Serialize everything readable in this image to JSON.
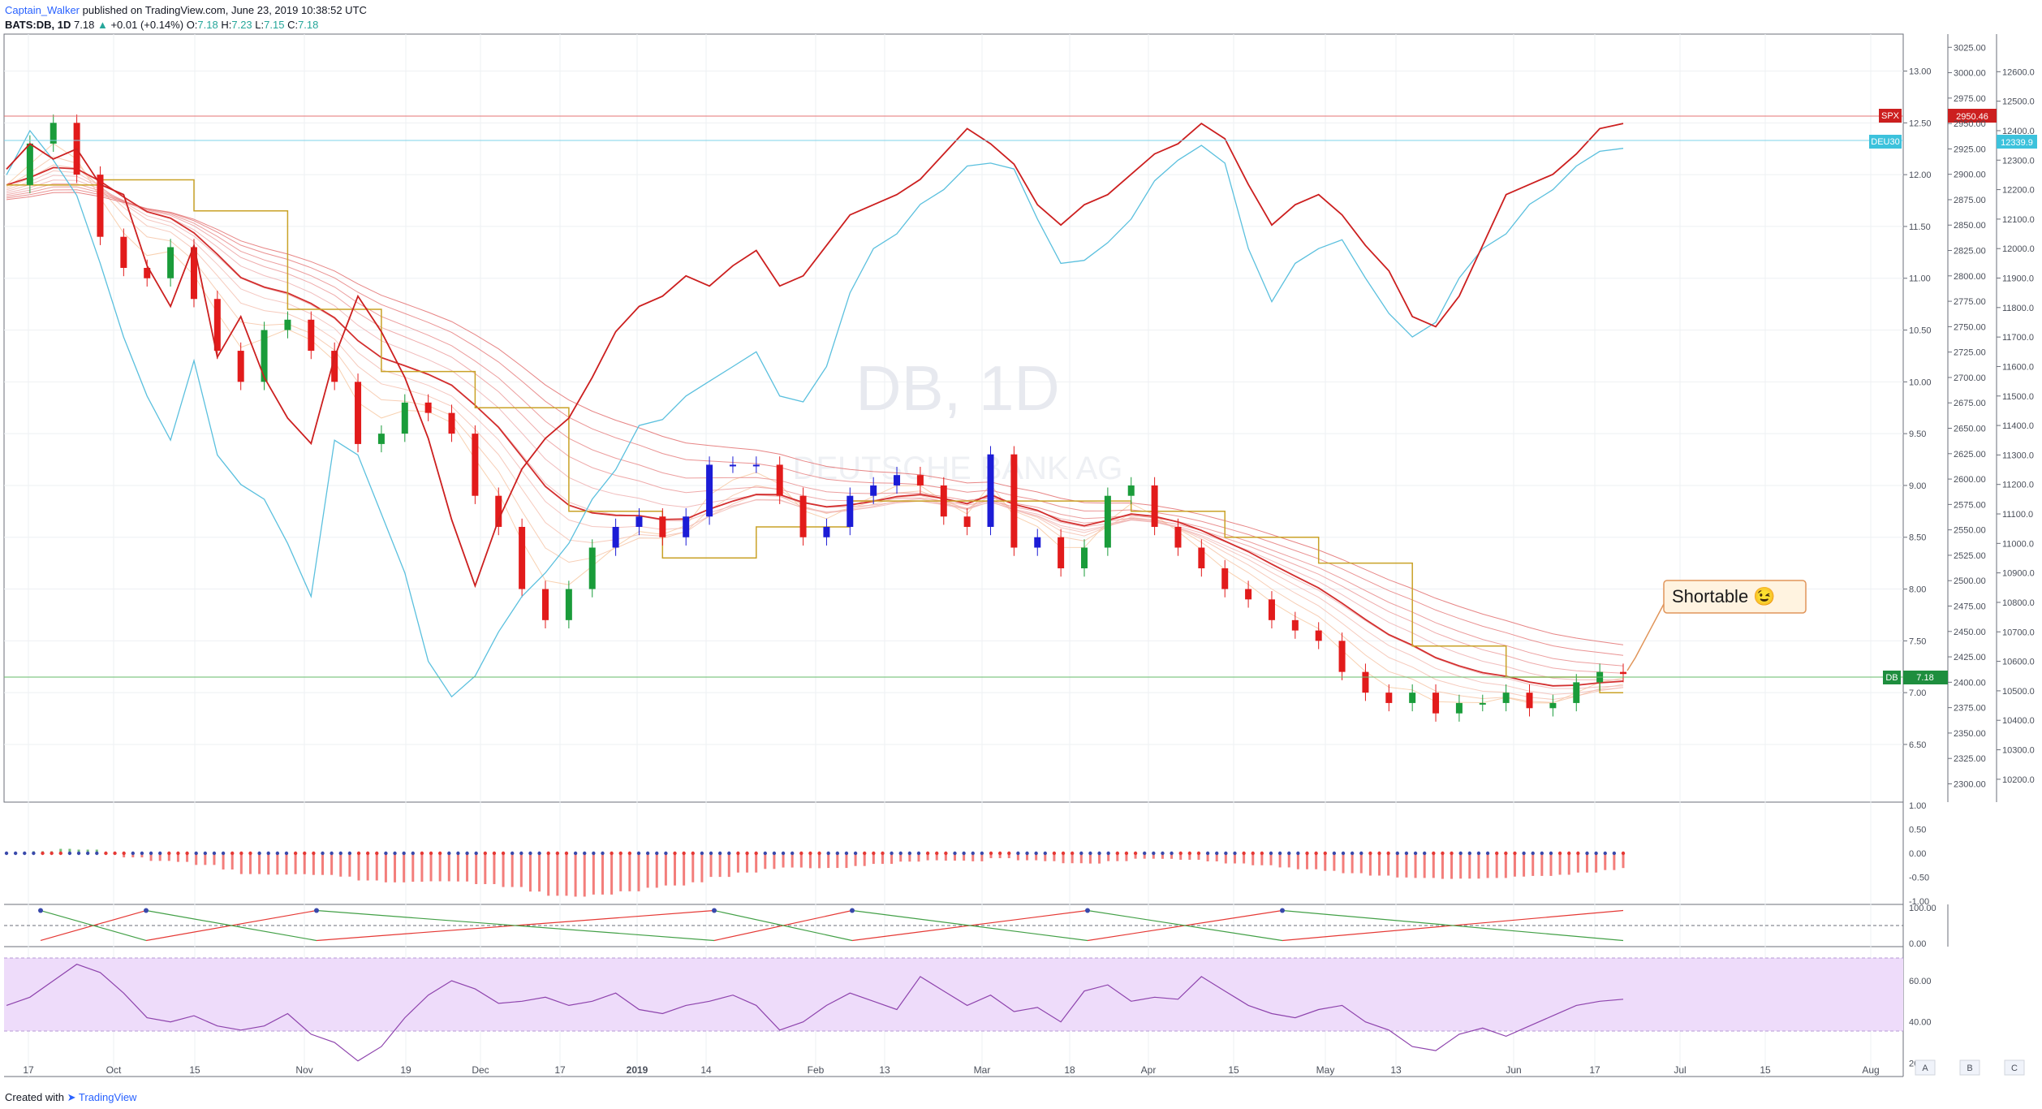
{
  "header": {
    "publisher": "Captain_Walker",
    "published_text": " published on TradingView.com, June 23, 2019 10:38:52 UTC",
    "symbol": "BATS:DB, 1D",
    "last": "7.18",
    "change": "+0.01 (+0.14%)",
    "o_label": "O:",
    "o": "7.18",
    "h_label": "H:",
    "h": "7.23",
    "l_label": "L:",
    "l": "7.15",
    "c_label": "C:",
    "c": "7.18"
  },
  "footer": {
    "created": "Created with",
    "brand": "TradingView"
  },
  "watermark": {
    "line1": "DB, 1D",
    "line2": "DEUTSCHE BANK AG"
  },
  "colors": {
    "spx": "#cc1f1f",
    "deu30": "#5bc0de",
    "db": "#2e7d32",
    "kijun": "#c9a227",
    "up": "#1a9c3a",
    "down": "#e21b1b",
    "blue": "#1c1cd6",
    "rsi_band": "#eedcfa"
  },
  "annotation": {
    "text": "Shortable 😉"
  },
  "price_labels": {
    "spx_tag": "SPX",
    "spx_value": "2950.46",
    "deu_tag": "DEU30",
    "deu_value": "12339.9",
    "db_tag": "DB",
    "db_value": "7.18"
  },
  "axis_letters": [
    "A",
    "B",
    "C"
  ],
  "chart_data": [
    {
      "type": "line",
      "title": "BATS:DB, 1D",
      "x_ticks": [
        "17",
        "Oct",
        "15",
        "Nov",
        "19",
        "Dec",
        "17",
        "2019",
        "14",
        "Feb",
        "13",
        "Mar",
        "18",
        "Apr",
        "15",
        "May",
        "13",
        "Jun",
        "17",
        "Jul",
        "15",
        "Aug"
      ],
      "y_ticks_db": [
        "13.00",
        "12.50",
        "12.00",
        "11.50",
        "11.00",
        "10.50",
        "10.00",
        "9.50",
        "9.00",
        "8.50",
        "8.00",
        "7.50",
        "7.00",
        "6.50"
      ],
      "y_ticks_spx": [
        "3025.00",
        "3000.00",
        "2975.00",
        "2950.00",
        "2925.00",
        "2900.00",
        "2875.00",
        "2850.00",
        "2825.00",
        "2800.00",
        "2775.00",
        "2750.00",
        "2725.00",
        "2700.00",
        "2675.00",
        "2650.00",
        "2625.00",
        "2600.00",
        "2575.00",
        "2550.00",
        "2525.00",
        "2500.00",
        "2475.00",
        "2450.00",
        "2425.00",
        "2400.00",
        "2375.00",
        "2350.00",
        "2325.00",
        "2300.00"
      ],
      "y_ticks_deu": [
        "12600.0",
        "12500.0",
        "12400.0",
        "12300.0",
        "12200.0",
        "12100.0",
        "12000.0",
        "11900.0",
        "11800.0",
        "11700.0",
        "11600.0",
        "11500.0",
        "11400.0",
        "11300.0",
        "11200.0",
        "11100.0",
        "11000.0",
        "10900.0",
        "10800.0",
        "10700.0",
        "10600.0",
        "10500.0",
        "10400.0",
        "10300.0",
        "10200.0"
      ],
      "ylim_db": [
        6.1,
        13.2
      ],
      "ylim_spx": [
        2290,
        3030
      ],
      "series": [
        {
          "name": "SPX",
          "values": [
            2905,
            2930,
            2915,
            2925,
            2890,
            2880,
            2810,
            2770,
            2830,
            2720,
            2760,
            2700,
            2660,
            2635,
            2720,
            2780,
            2745,
            2700,
            2640,
            2560,
            2495,
            2560,
            2610,
            2640,
            2660,
            2700,
            2745,
            2770,
            2780,
            2800,
            2790,
            2810,
            2825,
            2790,
            2800,
            2830,
            2860,
            2870,
            2880,
            2895,
            2920,
            2945,
            2930,
            2910,
            2870,
            2850,
            2870,
            2880,
            2900,
            2920,
            2930,
            2950,
            2935,
            2890,
            2850,
            2870,
            2880,
            2860,
            2830,
            2805,
            2760,
            2750,
            2780,
            2830,
            2880,
            2890,
            2900,
            2920,
            2945,
            2950
          ]
        },
        {
          "name": "DEU30",
          "values": [
            12250,
            12400,
            12300,
            12180,
            11950,
            11700,
            11500,
            11350,
            11620,
            11300,
            11200,
            11150,
            11000,
            10820,
            11350,
            11300,
            11100,
            10900,
            10600,
            10480,
            10550,
            10700,
            10820,
            10900,
            11000,
            11150,
            11250,
            11400,
            11420,
            11500,
            11550,
            11600,
            11650,
            11500,
            11480,
            11600,
            11850,
            12000,
            12050,
            12150,
            12200,
            12280,
            12290,
            12270,
            12100,
            11950,
            11960,
            12020,
            12100,
            12230,
            12300,
            12350,
            12290,
            12000,
            11820,
            11950,
            12000,
            12030,
            11900,
            11780,
            11700,
            11750,
            11900,
            12000,
            12050,
            12150,
            12200,
            12280,
            12330,
            12340
          ]
        },
        {
          "name": "DB",
          "values": [
            11.9,
            12.3,
            12.5,
            12.0,
            11.4,
            11.1,
            11.0,
            11.3,
            10.8,
            10.3,
            10.0,
            10.5,
            10.6,
            10.3,
            10.0,
            9.4,
            9.5,
            9.8,
            9.7,
            9.5,
            8.9,
            8.6,
            8.0,
            7.7,
            8.0,
            8.4,
            8.6,
            8.7,
            8.5,
            8.7,
            9.2,
            9.2,
            9.2,
            8.9,
            8.5,
            8.6,
            8.9,
            9.0,
            9.1,
            9.0,
            8.7,
            8.6,
            9.3,
            8.4,
            8.5,
            8.2,
            8.4,
            8.9,
            9.0,
            8.6,
            8.4,
            8.2,
            8.0,
            7.9,
            7.7,
            7.6,
            7.5,
            7.2,
            7.0,
            6.9,
            7.0,
            6.8,
            6.9,
            6.9,
            7.0,
            6.85,
            6.9,
            7.1,
            7.2,
            7.18
          ]
        }
      ]
    },
    {
      "type": "bar",
      "title": "",
      "y_ticks": [
        "1.00",
        "0.50",
        "0.00",
        "-0.50",
        "-1.00"
      ],
      "ylim": [
        -1.0,
        1.0
      ]
    },
    {
      "type": "line",
      "title": "",
      "y_ticks": [
        "100.00",
        "0.00"
      ],
      "ylim": [
        0,
        100
      ]
    },
    {
      "type": "line",
      "title": "",
      "y_ticks": [
        "60.00",
        "40.00",
        "20.00"
      ],
      "ylim": [
        15,
        75
      ],
      "band": [
        30,
        70
      ],
      "series": [
        {
          "name": "RSI",
          "values": [
            48,
            52,
            60,
            68,
            64,
            54,
            42,
            40,
            43,
            38,
            36,
            38,
            44,
            34,
            30,
            21,
            28,
            42,
            53,
            60,
            56,
            49,
            50,
            52,
            48,
            50,
            54,
            46,
            44,
            48,
            50,
            53,
            48,
            36,
            40,
            48,
            54,
            50,
            46,
            62,
            55,
            48,
            53,
            45,
            47,
            40,
            55,
            58,
            50,
            52,
            51,
            62,
            55,
            48,
            44,
            42,
            46,
            48,
            40,
            36,
            28,
            26,
            34,
            37,
            33,
            38,
            43,
            48,
            50,
            51
          ]
        }
      ]
    }
  ]
}
